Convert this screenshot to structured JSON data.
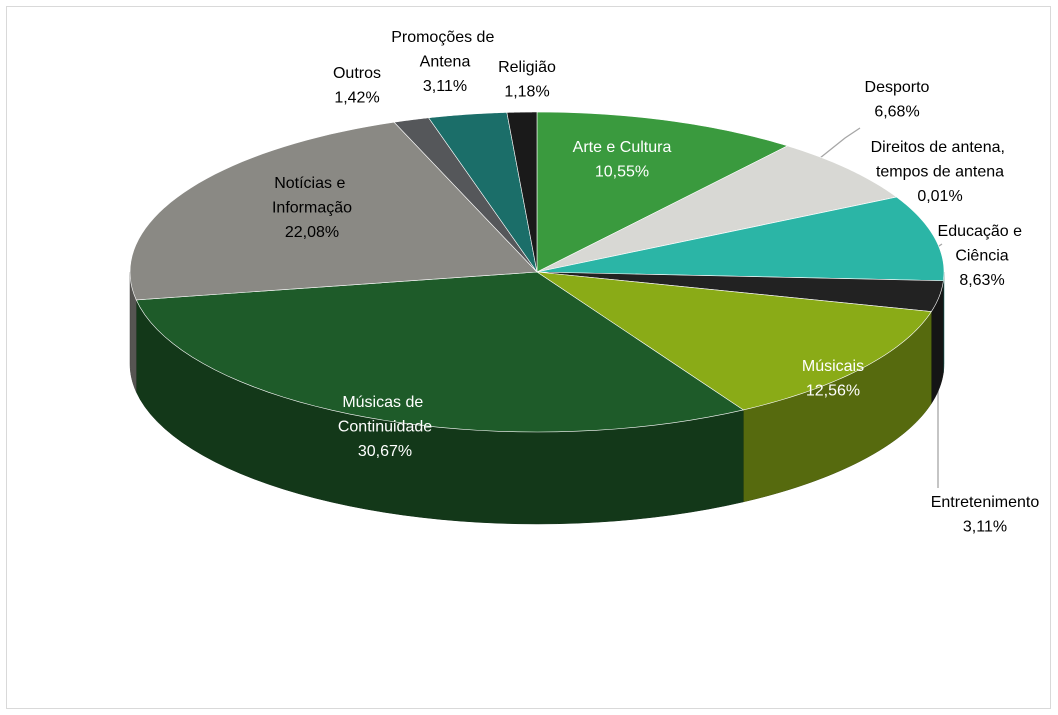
{
  "chart_data": {
    "type": "pie3d",
    "categories": [
      "Arte e Cultura",
      "Desporto",
      "Direitos de antena, tempos de antena",
      "Educação e Ciência",
      "Entretenimento",
      "Músicais",
      "Músicas de Continuidade",
      "Notícias e Informação",
      "Outros",
      "Promoções de Antena",
      "Religião"
    ],
    "values": [
      10.55,
      6.68,
      0.01,
      8.63,
      3.11,
      12.56,
      30.67,
      22.08,
      1.42,
      3.11,
      1.18
    ],
    "value_labels": [
      "10,55%",
      "6,68%",
      "0,01%",
      "8,63%",
      "3,11%",
      "12,56%",
      "30,67%",
      "22,08%",
      "1,42%",
      "3,11%",
      "1,18%"
    ],
    "colors": [
      "#3a9a3e",
      "#d8d8d4",
      "#b0b0b0",
      "#2bb5a6",
      "#222222",
      "#8aab17",
      "#1e5b29",
      "#8a8984",
      "#55575a",
      "#1b6e69",
      "#1a1a1a"
    ]
  }
}
